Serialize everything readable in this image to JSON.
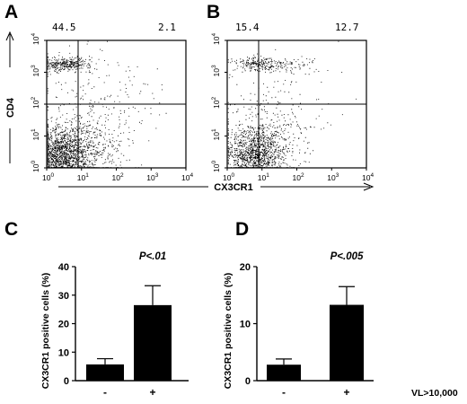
{
  "figure": {
    "panels": [
      "A",
      "B",
      "C",
      "D"
    ],
    "flow_y_label": "CD4",
    "flow_x_label": "CX3CR1",
    "vl_label": "VL>10,000"
  },
  "chart_data": [
    {
      "panel": "A",
      "type": "scatter",
      "xlabel": "",
      "ylabel": "CD4",
      "xscale": "log",
      "yscale": "log",
      "xlim": [
        1,
        10000
      ],
      "ylim": [
        1,
        10000
      ],
      "tick_labels": [
        "10^0",
        "10^1",
        "10^2",
        "10^3",
        "10^4"
      ],
      "gate_x": 8,
      "gate_y": 100,
      "quadrant_percentages": {
        "upper_left": "44.5",
        "upper_right": "2.1"
      }
    },
    {
      "panel": "B",
      "type": "scatter",
      "xlabel": "CX3CR1",
      "ylabel": "",
      "xscale": "log",
      "yscale": "log",
      "xlim": [
        1,
        10000
      ],
      "ylim": [
        1,
        10000
      ],
      "tick_labels": [
        "10^0",
        "10^1",
        "10^2",
        "10^3",
        "10^4"
      ],
      "gate_x": 8,
      "gate_y": 100,
      "quadrant_percentages": {
        "upper_left": "15.4",
        "upper_right": "12.7"
      }
    },
    {
      "panel": "C",
      "type": "bar",
      "categories": [
        "-",
        "+"
      ],
      "values": [
        5.7,
        26.5
      ],
      "errors": [
        2.0,
        6.8
      ],
      "ylabel": "CX3CR1 positive cells (%)",
      "ylim": [
        0,
        40
      ],
      "yticks": [
        0,
        10,
        20,
        30,
        40
      ],
      "annotation": "P<.01"
    },
    {
      "panel": "D",
      "type": "bar",
      "categories": [
        "-",
        "+"
      ],
      "values": [
        2.8,
        13.3
      ],
      "errors": [
        1.0,
        3.2
      ],
      "ylabel": "CX3CR1 positive cells (%)",
      "ylim": [
        0,
        20
      ],
      "yticks": [
        0,
        10,
        20
      ],
      "annotation": "P<.005"
    }
  ]
}
